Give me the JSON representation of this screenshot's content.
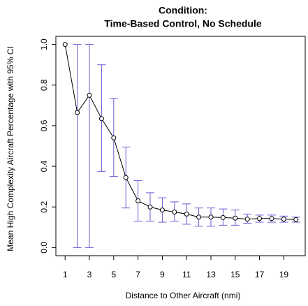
{
  "chart_data": {
    "type": "line",
    "title": [
      "Condition:",
      "Time-Based Control, No Schedule"
    ],
    "x_label": "Distance to Other Aircraft (nmi)",
    "y_label": "Mean High Complexity Aircraft Percentage with 95% CI",
    "x": [
      1,
      2,
      3,
      4,
      5,
      6,
      7,
      8,
      9,
      10,
      11,
      12,
      13,
      14,
      15,
      16,
      17,
      18,
      19,
      20
    ],
    "series": [
      {
        "color": "#000000",
        "error_color": "#6b5bd6",
        "values": [
          1.0,
          0.665,
          0.75,
          0.635,
          0.54,
          0.345,
          0.23,
          0.2,
          0.185,
          0.175,
          0.165,
          0.15,
          0.15,
          0.148,
          0.145,
          0.14,
          0.143,
          0.143,
          0.14,
          0.138
        ],
        "lower": [
          null,
          0,
          0,
          0.375,
          0.35,
          0.195,
          0.13,
          0.13,
          0.125,
          0.13,
          0.115,
          0.105,
          0.105,
          0.11,
          0.11,
          0.12,
          0.125,
          0.125,
          0.125,
          0.125
        ],
        "upper": [
          null,
          1.0,
          1.0,
          0.9,
          0.735,
          0.495,
          0.33,
          0.27,
          0.245,
          0.225,
          0.215,
          0.195,
          0.195,
          0.19,
          0.185,
          0.165,
          0.16,
          0.16,
          0.155,
          0.15
        ]
      }
    ],
    "xlim": [
      0.24,
      20.76
    ],
    "ylim": [
      -0.04,
      1.04
    ],
    "xticks": [
      1,
      3,
      5,
      7,
      9,
      11,
      13,
      15,
      17,
      19
    ],
    "yticks": [
      {
        "value": 0,
        "label": "0.0"
      },
      0.2,
      0.4,
      0.6,
      0.8,
      {
        "value": 1,
        "label": "1.0"
      }
    ]
  }
}
